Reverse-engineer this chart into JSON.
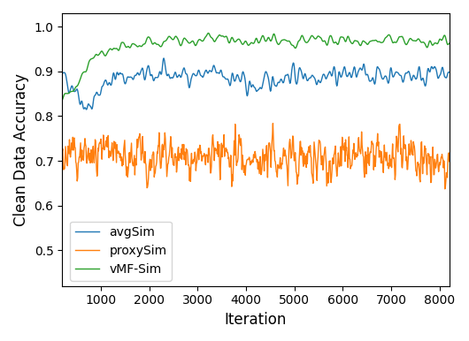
{
  "title": "",
  "xlabel": "Iteration",
  "ylabel": "Clean Data Accuracy",
  "xlim": [
    200,
    8200
  ],
  "ylim": [
    0.42,
    1.03
  ],
  "yticks": [
    0.5,
    0.6,
    0.7,
    0.8,
    0.9,
    1.0
  ],
  "xticks": [
    1000,
    2000,
    3000,
    4000,
    5000,
    6000,
    7000,
    8000
  ],
  "colors": {
    "avgSim": "#1f77b4",
    "proxySim": "#ff7f0e",
    "vMF-Sim": "#2ca02c"
  },
  "legend_labels": [
    "avgSim",
    "proxySim",
    "vMF-Sim"
  ],
  "n_points": 800,
  "seed": 42,
  "figsize": [
    5.3,
    3.86
  ],
  "dpi": 100
}
